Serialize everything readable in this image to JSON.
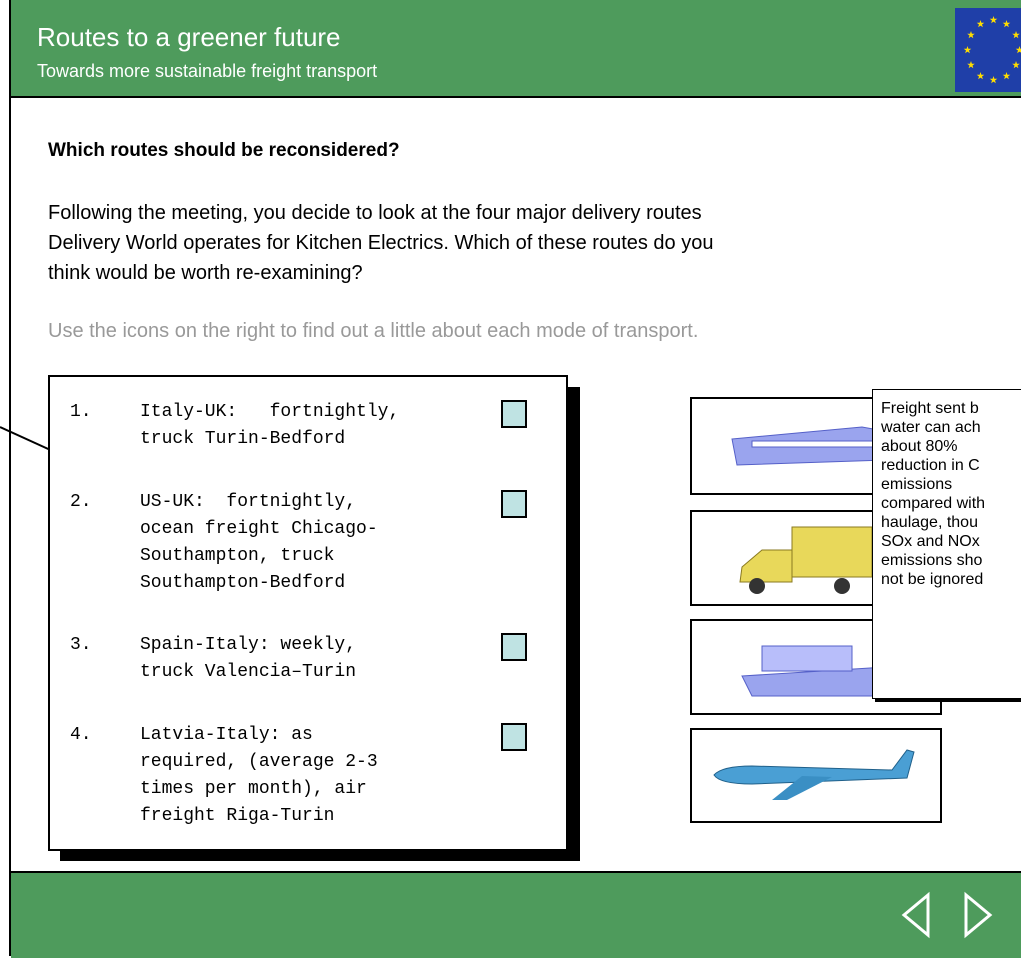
{
  "header": {
    "title": "Routes to a greener future",
    "subtitle": "Towards more sustainable freight transport"
  },
  "content": {
    "heading": "Which routes should be reconsidered?",
    "paragraph": [
      "Following the meeting, you decide to look at the four major delivery routes",
      "Delivery World operates for Kitchen Electrics. Which of these routes do you",
      "think would be worth re-examining?"
    ],
    "hint": "Use the icons on the right to find out a little about each mode of transport."
  },
  "routes": [
    {
      "number": "1.",
      "lines": [
        "Italy-UK:   fortnightly,",
        "truck Turin-Bedford"
      ]
    },
    {
      "number": "2.",
      "lines": [
        "US-UK:  fortnightly,",
        "ocean freight Chicago-",
        "Southampton, truck",
        "Southampton-Bedford"
      ]
    },
    {
      "number": "3.",
      "lines": [
        "Spain-Italy: weekly,",
        "truck Valencia–Turin"
      ]
    },
    {
      "number": "4.",
      "lines": [
        "Latvia-Italy: as",
        "required, (average 2-3",
        "times per month), air",
        "freight Riga-Turin"
      ]
    }
  ],
  "tooltip": [
    "Freight sent b",
    "water can ach",
    "about 80%",
    "reduction in C",
    "emissions",
    "compared with",
    "haulage, thou",
    "SOx and NOx",
    "emissions sho",
    "not be ignored"
  ]
}
